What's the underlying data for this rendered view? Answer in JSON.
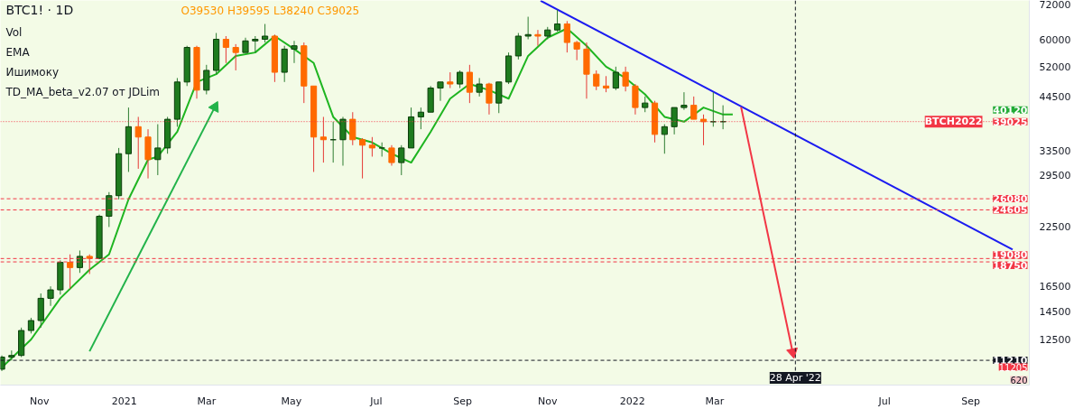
{
  "chart_data": {
    "type": "candlestick",
    "title": "BTC1! · 1D",
    "subtitle": "O39530 H39595 L38240 C39025",
    "annotations": [
      "Vol",
      "EMA",
      "Ишимоку",
      "TD_MA_beta_v2.07 от JDLim",
      "40120",
      "11205",
      "620",
      {
        "text": "BTCH2022",
        "y": 39025
      }
    ],
    "x": [
      "2020-10-05",
      "2020-10-12",
      "2020-10-19",
      "2020-10-26",
      "2020-11-02",
      "2020-11-09",
      "2020-11-16",
      "2020-11-23",
      "2020-11-30",
      "2020-12-07",
      "2020-12-14",
      "2020-12-21",
      "2020-12-28",
      "2021-01-04",
      "2021-01-11",
      "2021-01-18",
      "2021-01-25",
      "2021-02-01",
      "2021-02-08",
      "2021-02-15",
      "2021-02-22",
      "2021-03-01",
      "2021-03-08",
      "2021-03-15",
      "2021-03-22",
      "2021-03-29",
      "2021-04-05",
      "2021-04-12",
      "2021-04-19",
      "2021-04-26",
      "2021-05-03",
      "2021-05-10",
      "2021-05-17",
      "2021-05-24",
      "2021-05-31",
      "2021-06-07",
      "2021-06-14",
      "2021-06-21",
      "2021-06-28",
      "2021-07-05",
      "2021-07-12",
      "2021-07-19",
      "2021-07-26",
      "2021-08-02",
      "2021-08-09",
      "2021-08-16",
      "2021-08-23",
      "2021-08-30",
      "2021-09-06",
      "2021-09-13",
      "2021-09-20",
      "2021-09-27",
      "2021-10-04",
      "2021-10-11",
      "2021-10-18",
      "2021-10-25",
      "2021-11-01",
      "2021-11-08",
      "2021-11-15",
      "2021-11-22",
      "2021-11-29",
      "2021-12-06",
      "2021-12-13",
      "2021-12-20",
      "2021-12-27",
      "2022-01-03",
      "2022-01-10",
      "2022-01-17",
      "2022-01-24",
      "2022-01-31",
      "2022-02-07",
      "2022-02-14",
      "2022-02-21",
      "2022-02-28",
      "2022-03-07"
    ],
    "ohlc": [
      [
        10700,
        11500,
        10600,
        11400
      ],
      [
        11400,
        11800,
        11200,
        11500
      ],
      [
        11500,
        13300,
        11400,
        13100
      ],
      [
        13100,
        14000,
        12900,
        13800
      ],
      [
        13800,
        15900,
        13300,
        15500
      ],
      [
        15500,
        16500,
        14900,
        16200
      ],
      [
        16200,
        18900,
        15800,
        18700
      ],
      [
        18700,
        19500,
        16300,
        18200
      ],
      [
        18200,
        19900,
        17700,
        19300
      ],
      [
        19300,
        19500,
        17600,
        19100
      ],
      [
        19100,
        24000,
        19000,
        23800
      ],
      [
        23800,
        27000,
        22500,
        26500
      ],
      [
        26500,
        34000,
        26000,
        33000
      ],
      [
        33000,
        42000,
        30000,
        38000
      ],
      [
        38000,
        40000,
        30500,
        36000
      ],
      [
        36000,
        37500,
        29000,
        32000
      ],
      [
        32000,
        38500,
        29500,
        34000
      ],
      [
        34000,
        40000,
        33000,
        39500
      ],
      [
        39500,
        49000,
        38000,
        48000
      ],
      [
        48000,
        58000,
        47000,
        57500
      ],
      [
        57500,
        58000,
        44000,
        46000
      ],
      [
        46000,
        52500,
        45000,
        51000
      ],
      [
        51000,
        62000,
        50000,
        60000
      ],
      [
        60000,
        61000,
        53000,
        57500
      ],
      [
        57500,
        58500,
        51000,
        56000
      ],
      [
        56000,
        60500,
        56000,
        59500
      ],
      [
        59500,
        61000,
        56000,
        60000
      ],
      [
        60000,
        65000,
        59000,
        61000
      ],
      [
        61000,
        61500,
        48000,
        50500
      ],
      [
        50500,
        58000,
        48000,
        57000
      ],
      [
        57000,
        59500,
        53000,
        58000
      ],
      [
        58000,
        59000,
        43000,
        47000
      ],
      [
        47000,
        47000,
        30000,
        36000
      ],
      [
        36000,
        40000,
        31500,
        35500
      ],
      [
        35500,
        39000,
        31500,
        35500
      ],
      [
        35500,
        40000,
        31000,
        39500
      ],
      [
        39500,
        41000,
        34500,
        35500
      ],
      [
        35500,
        35800,
        29000,
        34500
      ],
      [
        34500,
        36000,
        32500,
        34000
      ],
      [
        34000,
        35000,
        32500,
        34000
      ],
      [
        34000,
        34500,
        31000,
        31500
      ],
      [
        31500,
        34500,
        29500,
        34000
      ],
      [
        34000,
        42000,
        34000,
        40000
      ],
      [
        40000,
        42000,
        37500,
        41000
      ],
      [
        41000,
        47000,
        41000,
        46500
      ],
      [
        46500,
        48000,
        43500,
        48000
      ],
      [
        48000,
        50500,
        46500,
        47500
      ],
      [
        47500,
        51000,
        46500,
        50500
      ],
      [
        50500,
        52500,
        43000,
        45500
      ],
      [
        45500,
        49000,
        44500,
        47500
      ],
      [
        47500,
        47800,
        40500,
        43000
      ],
      [
        43000,
        48000,
        40800,
        48000
      ],
      [
        48000,
        56000,
        47500,
        55000
      ],
      [
        55000,
        62000,
        54000,
        61000
      ],
      [
        61000,
        67500,
        60000,
        61500
      ],
      [
        61500,
        63000,
        58000,
        61000
      ],
      [
        61000,
        64000,
        60000,
        63000
      ],
      [
        63000,
        70000,
        62500,
        65000
      ],
      [
        65000,
        66000,
        56000,
        59000
      ],
      [
        59000,
        59500,
        53800,
        57000
      ],
      [
        57000,
        59000,
        44000,
        50000
      ],
      [
        50000,
        51000,
        46000,
        47000
      ],
      [
        47000,
        49500,
        45500,
        46500
      ],
      [
        46500,
        52000,
        46000,
        50500
      ],
      [
        50500,
        52000,
        45700,
        47000
      ],
      [
        47000,
        47500,
        40500,
        42000
      ],
      [
        42000,
        44500,
        41000,
        43000
      ],
      [
        43000,
        43500,
        35000,
        36500
      ],
      [
        36500,
        38500,
        33000,
        38000
      ],
      [
        38000,
        42000,
        36500,
        42000
      ],
      [
        42000,
        45500,
        41500,
        42500
      ],
      [
        42500,
        44500,
        39500,
        39500
      ],
      [
        39500,
        40500,
        34500,
        39000
      ],
      [
        39000,
        45500,
        38000,
        39000
      ],
      [
        39000,
        42500,
        37500,
        39025
      ]
    ],
    "series": [
      {
        "type": "line",
        "color": "#1fb521",
        "x": [
          "2020-10-05",
          "2020-10-26",
          "2020-11-16",
          "2020-12-07",
          "2020-12-21",
          "2021-01-04",
          "2021-01-18",
          "2021-01-25",
          "2021-02-08",
          "2021-02-22",
          "2021-03-08",
          "2021-03-22",
          "2021-04-05",
          "2021-04-19",
          "2021-05-03",
          "2021-05-17",
          "2021-05-31",
          "2021-06-14",
          "2021-06-28",
          "2021-07-12",
          "2021-07-26",
          "2021-08-09",
          "2021-08-23",
          "2021-09-06",
          "2021-09-20",
          "2021-10-04",
          "2021-10-18",
          "2021-11-01",
          "2021-11-15",
          "2021-11-29",
          "2021-12-13",
          "2021-12-27",
          "2022-01-10",
          "2022-01-24",
          "2022-02-07",
          "2022-02-21",
          "2022-03-07",
          "2022-03-14"
        ],
        "values": [
          10800,
          12500,
          15500,
          18000,
          19500,
          26000,
          32000,
          32500,
          37000,
          48000,
          50000,
          55000,
          56000,
          61000,
          57000,
          53000,
          40000,
          36000,
          35000,
          33000,
          31500,
          37000,
          44000,
          47500,
          46000,
          44000,
          55000,
          60500,
          63500,
          58000,
          52000,
          49000,
          45000,
          40000,
          39000,
          42000,
          40500,
          40500
        ]
      },
      {
        "type": "line",
        "color": "#1b1bf0",
        "x": [
          "2021-10-27",
          "2022-10-01"
        ],
        "values": [
          73400,
          20000
        ]
      },
      {
        "type": "line",
        "color": "#22b34a",
        "marker": "triangle",
        "x": [
          "2020-12-07",
          "2021-03-07"
        ],
        "values": [
          11750,
          42100
        ]
      },
      {
        "type": "line",
        "color": "#f23645",
        "marker": "triangle",
        "x": [
          "2022-03-20",
          "2022-04-26"
        ],
        "values": [
          42100,
          11700
        ]
      }
    ],
    "log": true,
    "grid": false,
    "xlim": [
      "2020-10-04",
      "2022-10-13"
    ],
    "xticks": [
      {
        "value": "2020-11-01",
        "label": "Nov"
      },
      {
        "value": "2021-01-01",
        "label": "2021"
      },
      {
        "value": "2021-03-01",
        "label": "Mar"
      },
      {
        "value": "2021-05-01",
        "label": "May"
      },
      {
        "value": "2021-07-01",
        "label": "Jul"
      },
      {
        "value": "2021-09-01",
        "label": "Sep"
      },
      {
        "value": "2021-11-01",
        "label": "Nov"
      },
      {
        "value": "2022-01-01",
        "label": "2022"
      },
      {
        "value": "2022-03-01",
        "label": "Mar"
      },
      {
        "value": "2022-07-01",
        "label": "Jul"
      },
      {
        "value": "2022-09-01",
        "label": "Sep"
      }
    ],
    "ylim": [
      9850,
      73500
    ],
    "yticks": [
      72000,
      60000,
      52000,
      44500,
      33500,
      29500,
      22500,
      16500,
      14500,
      12500
    ],
    "ref_lines": [
      {
        "axis": "y",
        "value": 39025,
        "label": "39025",
        "color": "#f23645",
        "line_style": "dotted"
      },
      {
        "axis": "y",
        "value": 26080,
        "label": "26080",
        "color": "#f23645",
        "line_style": "dashed"
      },
      {
        "axis": "y",
        "value": 24605,
        "label": "24605",
        "color": "#f23645",
        "line_style": "dashed"
      },
      {
        "axis": "y",
        "value": 19080,
        "label": "19080",
        "color": "#f23645",
        "line_style": "dashed"
      },
      {
        "axis": "y",
        "value": 18750,
        "label": "18750",
        "color": "#f23645",
        "line_style": "dashed"
      },
      {
        "axis": "y",
        "value": 11210,
        "label": "11210",
        "color": "#131722",
        "line_style": "dashed"
      },
      {
        "axis": "x",
        "value": "2022-04-28",
        "label": "28 Apr '22",
        "color": "#131722",
        "line_style": "dashed"
      }
    ]
  }
}
